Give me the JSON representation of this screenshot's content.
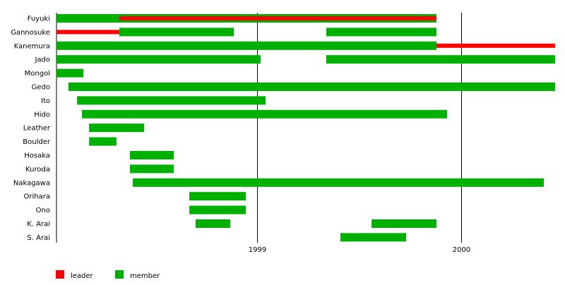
{
  "chart_data": {
    "type": "timeline",
    "xlim": [
      1998.0,
      2000.46
    ],
    "x_ticks": [
      "1999",
      "2000"
    ],
    "x_tick_values": [
      1999,
      2000
    ],
    "grid": "vertical lines at year ticks",
    "legend_position": "bottom-left",
    "colors": {
      "leader": "#ff0000",
      "member": "#00b000"
    },
    "legend": [
      {
        "key": "leader",
        "label": "leader"
      },
      {
        "key": "member",
        "label": "member"
      }
    ],
    "rows": [
      {
        "name": "Fuyuki",
        "bars": [
          {
            "role": "member",
            "from": 1998.0,
            "to": 1999.879
          },
          {
            "role": "leader",
            "from": 1998.325,
            "to": 1999.879
          }
        ]
      },
      {
        "name": "Gannosuke",
        "bars": [
          {
            "role": "leader",
            "from": 1998.0,
            "to": 1998.325
          },
          {
            "role": "member",
            "from": 1998.325,
            "to": 1998.886
          },
          {
            "role": "member",
            "from": 1999.339,
            "to": 1999.879
          }
        ]
      },
      {
        "name": "Kanemura",
        "bars": [
          {
            "role": "member",
            "from": 1998.0,
            "to": 1999.879
          },
          {
            "role": "leader",
            "from": 1999.879,
            "to": 2000.46
          }
        ]
      },
      {
        "name": "Jado",
        "bars": [
          {
            "role": "member",
            "from": 1998.0,
            "to": 1999.017
          },
          {
            "role": "member",
            "from": 1999.339,
            "to": 2000.46
          }
        ]
      },
      {
        "name": "Mongol",
        "bars": [
          {
            "role": "member",
            "from": 1998.007,
            "to": 1998.149
          }
        ]
      },
      {
        "name": "Gedo",
        "bars": [
          {
            "role": "member",
            "from": 1998.076,
            "to": 2000.46
          }
        ]
      },
      {
        "name": "Ito",
        "bars": [
          {
            "role": "member",
            "from": 1998.118,
            "to": 1999.042
          }
        ]
      },
      {
        "name": "Hido",
        "bars": [
          {
            "role": "member",
            "from": 1998.142,
            "to": 1999.931
          }
        ]
      },
      {
        "name": "Leather",
        "bars": [
          {
            "role": "member",
            "from": 1998.177,
            "to": 1998.447
          }
        ]
      },
      {
        "name": "Boulder",
        "bars": [
          {
            "role": "member",
            "from": 1998.177,
            "to": 1998.311
          }
        ]
      },
      {
        "name": "Hosaka",
        "bars": [
          {
            "role": "member",
            "from": 1998.377,
            "to": 1998.592
          }
        ]
      },
      {
        "name": "Kuroda",
        "bars": [
          {
            "role": "member",
            "from": 1998.377,
            "to": 1998.592
          }
        ]
      },
      {
        "name": "Nakagawa",
        "bars": [
          {
            "role": "member",
            "from": 1998.391,
            "to": 2000.405
          }
        ]
      },
      {
        "name": "Orihara",
        "bars": [
          {
            "role": "member",
            "from": 1998.668,
            "to": 1998.945
          }
        ]
      },
      {
        "name": "Ono",
        "bars": [
          {
            "role": "member",
            "from": 1998.668,
            "to": 1998.945
          }
        ]
      },
      {
        "name": "K. Arai",
        "bars": [
          {
            "role": "member",
            "from": 1998.699,
            "to": 1998.869
          },
          {
            "role": "member",
            "from": 1999.561,
            "to": 1999.879
          }
        ]
      },
      {
        "name": "S. Arai",
        "bars": [
          {
            "role": "member",
            "from": 1999.408,
            "to": 1999.73
          }
        ]
      }
    ]
  }
}
